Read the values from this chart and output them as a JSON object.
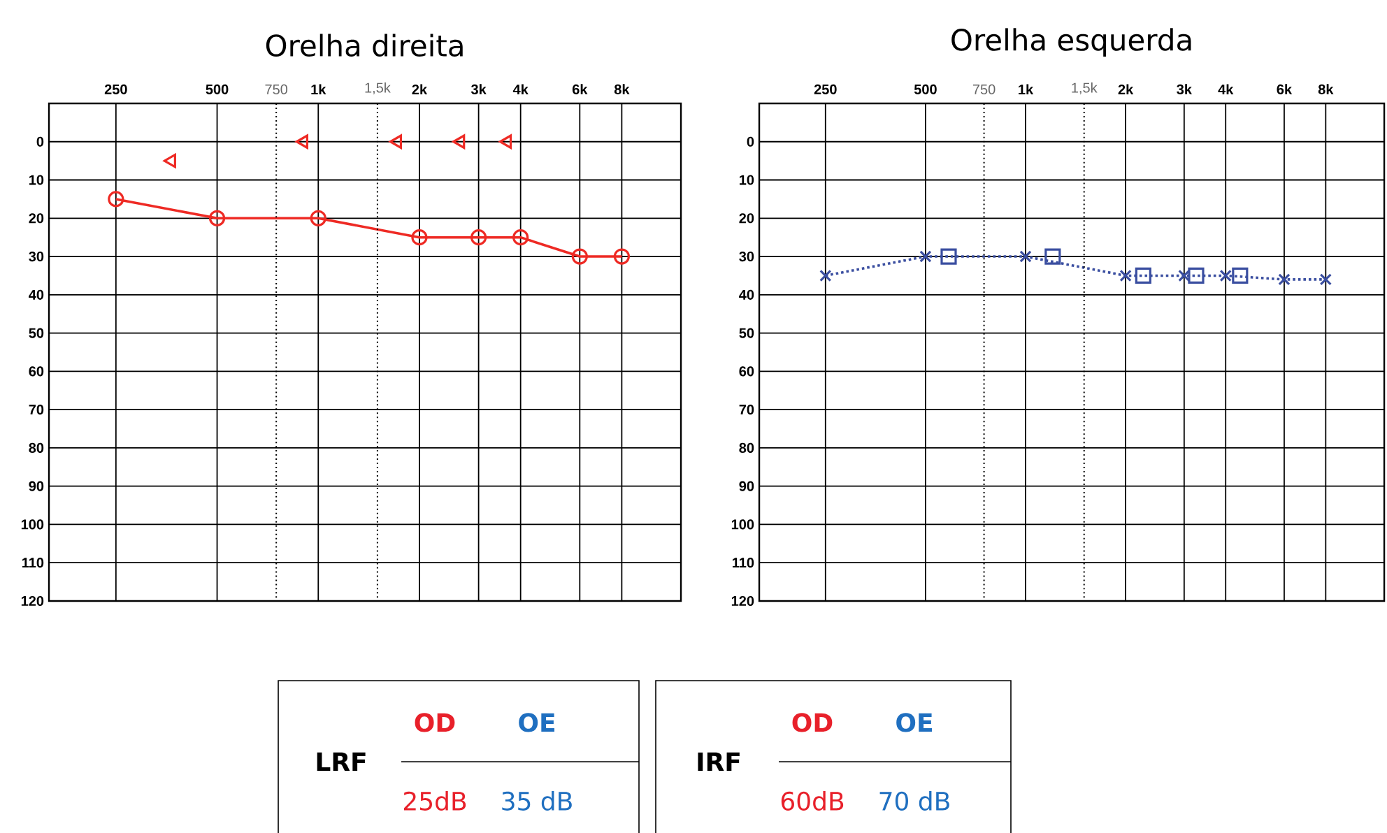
{
  "chart_data": [
    {
      "type": "line",
      "title": "Orelha direita",
      "log": "x",
      "xlim": [
        158,
        12000
      ],
      "ylim": [
        120,
        -10
      ],
      "xticks": [
        {
          "value": 250,
          "label": "250"
        },
        {
          "value": 500,
          "label": "500"
        },
        {
          "value": 1000,
          "label": "1k"
        },
        {
          "value": 2000,
          "label": "2k"
        },
        {
          "value": 3000,
          "label": "3k"
        },
        {
          "value": 4000,
          "label": "4k"
        },
        {
          "value": 6000,
          "label": "6k"
        },
        {
          "value": 8000,
          "label": "8k"
        }
      ],
      "yticks": [
        0,
        10,
        20,
        30,
        40,
        50,
        60,
        70,
        80,
        90,
        100,
        110,
        120
      ],
      "grid": true,
      "ref_lines": [
        {
          "axis": "x",
          "value": 750,
          "label": "750",
          "line_style": "dotted"
        },
        {
          "axis": "x",
          "value": 1500,
          "label": "1,5k",
          "line_style": "dotted"
        }
      ],
      "series": [
        {
          "color": "#ee2a24",
          "x": [
            250,
            500,
            1000,
            2000,
            3000,
            4000,
            6000,
            8000
          ],
          "values": [
            15,
            20,
            20,
            25,
            25,
            25,
            30,
            30
          ],
          "marker": "circle",
          "line_style": "solid"
        },
        {
          "type": "scatter",
          "color": "#ee2a24",
          "x": [
            366,
            905,
            1720,
            2650,
            3650
          ],
          "values": [
            5,
            0,
            0,
            0,
            0
          ],
          "marker": "triangle"
        }
      ]
    },
    {
      "type": "line",
      "title": "Orelha esquerda",
      "log": "x",
      "xlim": [
        158,
        12000
      ],
      "ylim": [
        120,
        -10
      ],
      "xticks": [
        {
          "value": 250,
          "label": "250"
        },
        {
          "value": 500,
          "label": "500"
        },
        {
          "value": 1000,
          "label": "1k"
        },
        {
          "value": 2000,
          "label": "2k"
        },
        {
          "value": 3000,
          "label": "3k"
        },
        {
          "value": 4000,
          "label": "4k"
        },
        {
          "value": 6000,
          "label": "6k"
        },
        {
          "value": 8000,
          "label": "8k"
        }
      ],
      "yticks": [
        0,
        10,
        20,
        30,
        40,
        50,
        60,
        70,
        80,
        90,
        100,
        110,
        120
      ],
      "grid": true,
      "ref_lines": [
        {
          "axis": "x",
          "value": 750,
          "label": "750",
          "line_style": "dotted"
        },
        {
          "axis": "x",
          "value": 1500,
          "label": "1,5k",
          "line_style": "dotted"
        }
      ],
      "series": [
        {
          "color": "#3a4ea0",
          "x": [
            250,
            500,
            1000,
            2000,
            3000,
            4000,
            6000,
            8000
          ],
          "values": [
            35,
            30,
            30,
            35,
            35,
            35,
            36,
            36
          ],
          "marker": "cross",
          "line_style": "dotted"
        },
        {
          "type": "scatter",
          "color": "#3a4ea0",
          "x": [
            587,
            1207,
            2260,
            3260,
            4420
          ],
          "values": [
            30,
            30,
            35,
            35,
            35
          ],
          "marker": "square"
        }
      ]
    },
    {
      "type": "other",
      "annotations": [
        "LRF",
        "OD",
        "OE",
        "25dB",
        "35 dB"
      ],
      "colors": [
        "#000000",
        "#e8202a",
        "#1f6fc0",
        "#e8202a",
        "#1f6fc0"
      ]
    },
    {
      "type": "other",
      "annotations": [
        "IRF",
        "OD",
        "OE",
        "60dB",
        "70 dB"
      ],
      "colors": [
        "#000000",
        "#e8202a",
        "#1f6fc0",
        "#e8202a",
        "#1f6fc0"
      ]
    }
  ]
}
